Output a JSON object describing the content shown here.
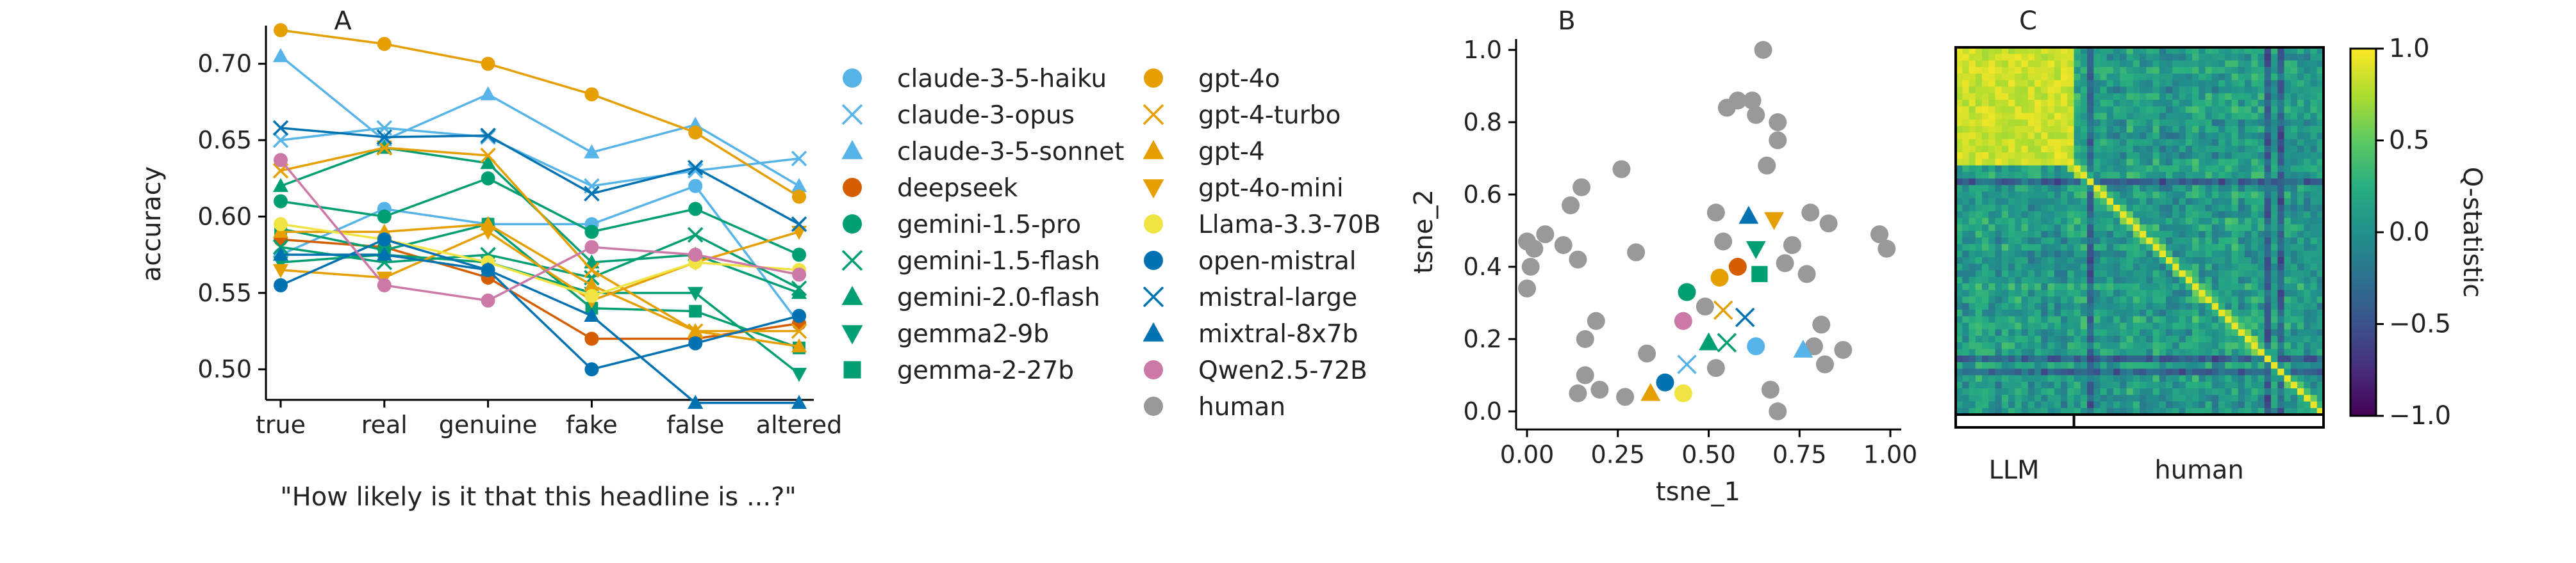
{
  "panels": {
    "A": {
      "label": "A",
      "ylabel": "accuracy",
      "xlabel": "\"How likely is it that this headline is ...?\""
    },
    "B": {
      "label": "B",
      "xlabel": "tsne_1",
      "ylabel": "tsne_2"
    },
    "C": {
      "label": "C",
      "colorbar_label": "Q-statistic",
      "group_labels": [
        "LLM",
        "human"
      ]
    }
  },
  "legend": [
    {
      "name": "claude-3-5-haiku",
      "color": "#56b4e9",
      "marker": "circle"
    },
    {
      "name": "claude-3-opus",
      "color": "#56b4e9",
      "marker": "x"
    },
    {
      "name": "claude-3-5-sonnet",
      "color": "#56b4e9",
      "marker": "triangle-up"
    },
    {
      "name": "deepseek",
      "color": "#d55e00",
      "marker": "circle"
    },
    {
      "name": "gemini-1.5-pro",
      "color": "#009e73",
      "marker": "circle"
    },
    {
      "name": "gemini-1.5-flash",
      "color": "#009e73",
      "marker": "x"
    },
    {
      "name": "gemini-2.0-flash",
      "color": "#009e73",
      "marker": "triangle-up"
    },
    {
      "name": "gemma2-9b",
      "color": "#009e73",
      "marker": "triangle-down"
    },
    {
      "name": "gemma-2-27b",
      "color": "#009e73",
      "marker": "square"
    },
    {
      "name": "gpt-4o",
      "color": "#e69f00",
      "marker": "circle"
    },
    {
      "name": "gpt-4-turbo",
      "color": "#e69f00",
      "marker": "x"
    },
    {
      "name": "gpt-4",
      "color": "#e69f00",
      "marker": "triangle-up"
    },
    {
      "name": "gpt-4o-mini",
      "color": "#e69f00",
      "marker": "triangle-down"
    },
    {
      "name": "Llama-3.3-70B",
      "color": "#f0e442",
      "marker": "circle"
    },
    {
      "name": "open-mistral",
      "color": "#0072b2",
      "marker": "circle"
    },
    {
      "name": "mistral-large",
      "color": "#0072b2",
      "marker": "x"
    },
    {
      "name": "mixtral-8x7b",
      "color": "#0072b2",
      "marker": "triangle-up"
    },
    {
      "name": "Qwen2.5-72B",
      "color": "#cc79a7",
      "marker": "circle"
    },
    {
      "name": "human",
      "color": "#999999",
      "marker": "circle"
    }
  ],
  "chart_data": [
    {
      "type": "line",
      "categories": [
        "true",
        "real",
        "genuine",
        "fake",
        "false",
        "altered"
      ],
      "ylim": [
        0.48,
        0.725
      ],
      "yticks": [
        "0.50",
        "0.55",
        "0.60",
        "0.65",
        "0.70"
      ],
      "series": [
        {
          "name": "claude-3-5-haiku",
          "values": [
            0.575,
            0.605,
            0.595,
            0.595,
            0.62,
            0.53
          ]
        },
        {
          "name": "claude-3-opus",
          "values": [
            0.65,
            0.658,
            0.652,
            0.62,
            0.63,
            0.638
          ]
        },
        {
          "name": "claude-3-5-sonnet",
          "values": [
            0.705,
            0.65,
            0.68,
            0.642,
            0.66,
            0.62
          ]
        },
        {
          "name": "deepseek",
          "values": [
            0.585,
            0.58,
            0.56,
            0.52,
            0.52,
            0.53
          ]
        },
        {
          "name": "gemini-1.5-pro",
          "values": [
            0.61,
            0.6,
            0.625,
            0.59,
            0.605,
            0.575
          ]
        },
        {
          "name": "gemini-1.5-flash",
          "values": [
            0.58,
            0.57,
            0.575,
            0.56,
            0.588,
            0.553
          ]
        },
        {
          "name": "gemini-2.0-flash",
          "values": [
            0.62,
            0.645,
            0.635,
            0.57,
            0.575,
            0.55
          ]
        },
        {
          "name": "gemma2-9b",
          "values": [
            0.57,
            0.575,
            0.57,
            0.55,
            0.55,
            0.497
          ]
        },
        {
          "name": "gemma-2-27b",
          "values": [
            0.592,
            0.578,
            0.595,
            0.54,
            0.538,
            0.514
          ]
        },
        {
          "name": "gpt-4o",
          "values": [
            0.722,
            0.713,
            0.7,
            0.68,
            0.655,
            0.613
          ]
        },
        {
          "name": "gpt-4-turbo",
          "values": [
            0.63,
            0.645,
            0.64,
            0.565,
            0.525,
            0.525
          ]
        },
        {
          "name": "gpt-4",
          "values": [
            0.59,
            0.59,
            0.595,
            0.555,
            0.525,
            0.515
          ]
        },
        {
          "name": "gpt-4o-mini",
          "values": [
            0.565,
            0.56,
            0.59,
            0.545,
            0.57,
            0.59
          ]
        },
        {
          "name": "Llama-3.3-70B",
          "values": [
            0.595,
            0.585,
            0.57,
            0.548,
            0.57,
            0.565
          ]
        },
        {
          "name": "open-mistral",
          "values": [
            0.555,
            0.585,
            0.565,
            0.5,
            0.517,
            0.535
          ]
        },
        {
          "name": "mistral-large",
          "values": [
            0.658,
            0.652,
            0.653,
            0.615,
            0.632,
            0.595
          ]
        },
        {
          "name": "mixtral-8x7b",
          "values": [
            0.575,
            0.575,
            0.565,
            0.535,
            0.478,
            0.478
          ]
        },
        {
          "name": "Qwen2.5-72B",
          "values": [
            0.637,
            0.555,
            0.545,
            0.58,
            0.575,
            0.562
          ]
        }
      ]
    },
    {
      "type": "scatter",
      "xlim": [
        -0.03,
        1.03
      ],
      "ylim": [
        -0.05,
        1.03
      ],
      "xticks": [
        "0.00",
        "0.25",
        "0.50",
        "0.75",
        "1.00"
      ],
      "yticks": [
        "0.0",
        "0.2",
        "0.4",
        "0.6",
        "0.8",
        "1.0"
      ],
      "model_points": [
        {
          "name": "claude-3-5-haiku",
          "x": 0.63,
          "y": 0.18
        },
        {
          "name": "claude-3-opus",
          "x": 0.44,
          "y": 0.13
        },
        {
          "name": "claude-3-5-sonnet",
          "x": 0.76,
          "y": 0.17
        },
        {
          "name": "deepseek",
          "x": 0.58,
          "y": 0.4
        },
        {
          "name": "gemini-1.5-pro",
          "x": 0.44,
          "y": 0.33
        },
        {
          "name": "gemini-1.5-flash",
          "x": 0.55,
          "y": 0.19
        },
        {
          "name": "gemini-2.0-flash",
          "x": 0.5,
          "y": 0.19
        },
        {
          "name": "gemma2-9b",
          "x": 0.63,
          "y": 0.45
        },
        {
          "name": "gemma-2-27b",
          "x": 0.64,
          "y": 0.38
        },
        {
          "name": "gpt-4o",
          "x": 0.53,
          "y": 0.37
        },
        {
          "name": "gpt-4-turbo",
          "x": 0.54,
          "y": 0.28
        },
        {
          "name": "gpt-4",
          "x": 0.34,
          "y": 0.05
        },
        {
          "name": "gpt-4o-mini",
          "x": 0.68,
          "y": 0.53
        },
        {
          "name": "Llama-3.3-70B",
          "x": 0.43,
          "y": 0.05
        },
        {
          "name": "open-mistral",
          "x": 0.38,
          "y": 0.08
        },
        {
          "name": "mistral-large",
          "x": 0.6,
          "y": 0.26
        },
        {
          "name": "mixtral-8x7b",
          "x": 0.61,
          "y": 0.54
        },
        {
          "name": "Qwen2.5-72B",
          "x": 0.43,
          "y": 0.25
        }
      ],
      "human_points": [
        [
          0.65,
          1.0
        ],
        [
          0.58,
          0.86
        ],
        [
          0.62,
          0.86
        ],
        [
          0.63,
          0.82
        ],
        [
          0.55,
          0.84
        ],
        [
          0.69,
          0.8
        ],
        [
          0.69,
          0.75
        ],
        [
          0.12,
          0.57
        ],
        [
          0.15,
          0.62
        ],
        [
          0.26,
          0.67
        ],
        [
          0.66,
          0.68
        ],
        [
          0.52,
          0.55
        ],
        [
          0.78,
          0.55
        ],
        [
          0.83,
          0.52
        ],
        [
          0.0,
          0.47
        ],
        [
          0.05,
          0.49
        ],
        [
          0.02,
          0.45
        ],
        [
          0.1,
          0.46
        ],
        [
          0.14,
          0.42
        ],
        [
          0.01,
          0.4
        ],
        [
          0.3,
          0.44
        ],
        [
          0.54,
          0.47
        ],
        [
          0.73,
          0.46
        ],
        [
          0.71,
          0.41
        ],
        [
          0.77,
          0.38
        ],
        [
          0.0,
          0.34
        ],
        [
          0.97,
          0.49
        ],
        [
          0.99,
          0.45
        ],
        [
          0.19,
          0.25
        ],
        [
          0.16,
          0.2
        ],
        [
          0.33,
          0.16
        ],
        [
          0.49,
          0.29
        ],
        [
          0.81,
          0.24
        ],
        [
          0.79,
          0.18
        ],
        [
          0.87,
          0.17
        ],
        [
          0.82,
          0.13
        ],
        [
          0.16,
          0.1
        ],
        [
          0.14,
          0.05
        ],
        [
          0.2,
          0.06
        ],
        [
          0.27,
          0.04
        ],
        [
          0.52,
          0.12
        ],
        [
          0.67,
          0.06
        ],
        [
          0.69,
          0.0
        ]
      ]
    },
    {
      "type": "heatmap",
      "n": 56,
      "llm_count": 18,
      "colorbar": {
        "range": [
          -1.0,
          1.0
        ],
        "ticks": [
          "−1.0",
          "−0.5",
          "0.0",
          "0.5",
          "1.0"
        ]
      }
    }
  ]
}
